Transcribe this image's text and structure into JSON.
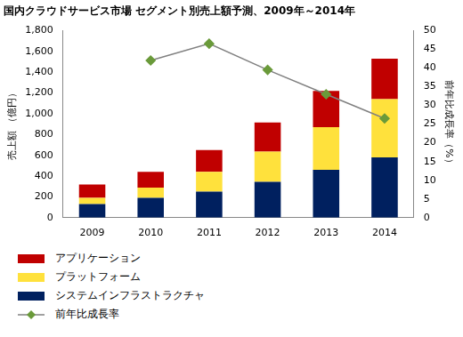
{
  "chart_data": {
    "type": "bar",
    "title": "国内クラウドサービス市場 セグメント別売上額予測、2009年～2014年",
    "ylabel": "売上額 （億円）",
    "y2label": "前年比成長率（%）",
    "categories": [
      "2009",
      "2010",
      "2011",
      "2012",
      "2013",
      "2014"
    ],
    "series": [
      {
        "name": "システムインフラストラクチャ",
        "type": "bar",
        "color": "#00205f",
        "values": [
          130,
          190,
          250,
          345,
          460,
          580
        ]
      },
      {
        "name": "プラットフォーム",
        "type": "bar",
        "color": "#ffe13c",
        "values": [
          60,
          100,
          190,
          290,
          410,
          560
        ]
      },
      {
        "name": "アプリケーション",
        "type": "bar",
        "color": "#c00000",
        "values": [
          130,
          150,
          210,
          280,
          350,
          390
        ]
      },
      {
        "name": "前年比成長率",
        "type": "line",
        "axis": "y2",
        "marker": "diamond",
        "color": "#6a9a3a",
        "values": [
          null,
          42,
          46.5,
          39.5,
          33,
          26.5
        ]
      }
    ],
    "stacked": true,
    "grid": false,
    "legend": "bottom-left",
    "ylim": [
      0,
      1800
    ],
    "yticks": [
      0,
      200,
      400,
      600,
      800,
      {
        "value": 1000,
        "label": "1,000"
      },
      {
        "value": 1200,
        "label": "1,200"
      },
      {
        "value": 1400,
        "label": "1,400"
      },
      {
        "value": 1600,
        "label": "1,600"
      },
      {
        "value": 1800,
        "label": "1,800"
      }
    ],
    "y2lim": [
      0,
      50
    ],
    "y2ticks": [
      0,
      5,
      10,
      15,
      20,
      25,
      30,
      35,
      40,
      45,
      50
    ]
  }
}
